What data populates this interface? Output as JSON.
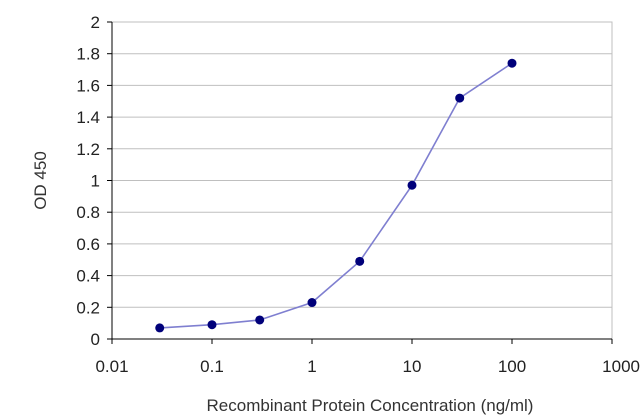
{
  "chart_data": {
    "type": "line",
    "title": "",
    "xlabel": "Recombinant Protein Concentration (ng/ml)",
    "ylabel": "OD 450",
    "x_scale": "log",
    "xlim": [
      0.01,
      1000
    ],
    "ylim": [
      0,
      2
    ],
    "x_ticks": [
      "0.01",
      "0.1",
      "1",
      "10",
      "100",
      "1000"
    ],
    "y_ticks": [
      "0",
      "0.2",
      "0.4",
      "0.6",
      "0.8",
      "1",
      "1.2",
      "1.4",
      "1.6",
      "1.8",
      "2"
    ],
    "grid": "horizontal",
    "series": [
      {
        "x": [
          0.03,
          0.1,
          0.3,
          1,
          3,
          10,
          30,
          100
        ],
        "y": [
          0.07,
          0.09,
          0.12,
          0.23,
          0.49,
          0.97,
          1.52,
          1.74
        ]
      }
    ],
    "colors": {
      "line": "#7f7fd0",
      "marker": "#00007a",
      "grid": "#bfbfbf",
      "axis": "#000000"
    }
  }
}
